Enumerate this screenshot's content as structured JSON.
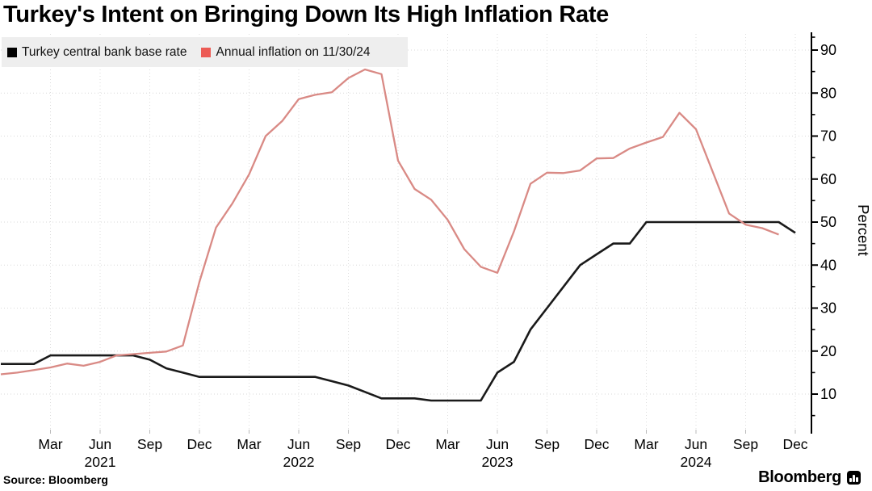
{
  "title": "Turkey's Intent on Bringing Down Its High Inflation Rate",
  "legend": {
    "items": [
      {
        "label": "Turkey central bank base rate",
        "color": "#000000"
      },
      {
        "label": "Annual inflation on 11/30/24",
        "color": "#ec5b55"
      }
    ]
  },
  "source_label": "Source: Bloomberg",
  "brand_label": "Bloomberg",
  "chart_data": {
    "type": "line",
    "title": "Turkey's Intent on Bringing Down Its High Inflation Rate",
    "x_frequency": "monthly",
    "x_start": "Dec 2020",
    "x_end": "Dec 2024",
    "ylabel": "Percent",
    "ylim": [
      0,
      94
    ],
    "grid": true,
    "legend_position": "top-left",
    "y_ticks": [
      10,
      20,
      30,
      40,
      50,
      60,
      70,
      80,
      90
    ],
    "y_minor_ticks": [
      5,
      15,
      25,
      35,
      45,
      55,
      65,
      75,
      85,
      93
    ],
    "x_ticks": [
      {
        "i": 3,
        "label": "Mar"
      },
      {
        "i": 6,
        "label": "Jun"
      },
      {
        "i": 9,
        "label": "Sep"
      },
      {
        "i": 12,
        "label": "Dec"
      },
      {
        "i": 15,
        "label": "Mar"
      },
      {
        "i": 18,
        "label": "Jun"
      },
      {
        "i": 21,
        "label": "Sep"
      },
      {
        "i": 24,
        "label": "Dec"
      },
      {
        "i": 27,
        "label": "Mar"
      },
      {
        "i": 30,
        "label": "Jun"
      },
      {
        "i": 33,
        "label": "Sep"
      },
      {
        "i": 36,
        "label": "Dec"
      },
      {
        "i": 39,
        "label": "Mar"
      },
      {
        "i": 42,
        "label": "Jun"
      },
      {
        "i": 45,
        "label": "Sep"
      },
      {
        "i": 48,
        "label": "Dec"
      }
    ],
    "year_labels": [
      {
        "i": 6,
        "label": "2021"
      },
      {
        "i": 18,
        "label": "2022"
      },
      {
        "i": 30,
        "label": "2023"
      },
      {
        "i": 42,
        "label": "2024"
      }
    ],
    "series": [
      {
        "name": "Turkey central bank base rate",
        "color": "#1a1a1a",
        "line_width": 2.6,
        "values": [
          17,
          17,
          17,
          19,
          19,
          19,
          19,
          19,
          19,
          18,
          16,
          15,
          14,
          14,
          14,
          14,
          14,
          14,
          14,
          14,
          13,
          12,
          10.5,
          9,
          9,
          9,
          8.5,
          8.5,
          8.5,
          8.5,
          15,
          17.5,
          25,
          30,
          35,
          40,
          42.5,
          45,
          45,
          50,
          50,
          50,
          50,
          50,
          50,
          50,
          50,
          50,
          47.5
        ]
      },
      {
        "name": "Annual inflation on 11/30/24",
        "color": "#d98a85",
        "line_width": 2.3,
        "values": [
          14.6,
          15.0,
          15.6,
          16.2,
          17.1,
          16.6,
          17.5,
          19.0,
          19.3,
          19.6,
          19.9,
          21.3,
          36.1,
          48.7,
          54.4,
          61.1,
          70.0,
          73.5,
          78.6,
          79.6,
          80.2,
          83.5,
          85.5,
          84.4,
          64.3,
          57.7,
          55.2,
          50.5,
          43.7,
          39.6,
          38.2,
          47.8,
          58.9,
          61.5,
          61.4,
          62.0,
          64.8,
          64.9,
          67.1,
          68.5,
          69.8,
          75.4,
          71.6,
          61.8,
          52.0,
          49.4,
          48.6,
          47.1
        ]
      }
    ]
  }
}
